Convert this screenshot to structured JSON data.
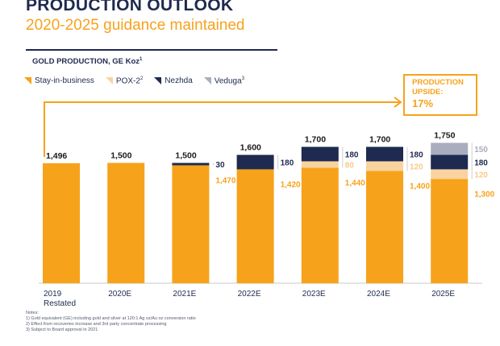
{
  "header": {
    "title": "PRODUCTION OUTLOOK",
    "subtitle": "2020-2025 guidance maintained"
  },
  "section_label": "GOLD PRODUCTION, GE Koz",
  "section_label_sup": "1",
  "legend": [
    {
      "label": "Stay-in-business",
      "sup": "",
      "color": "#f7a21b"
    },
    {
      "label": "POX-2",
      "sup": "2",
      "color": "#f9d3a0"
    },
    {
      "label": "Nezhda",
      "sup": "",
      "color": "#1e2a4f"
    },
    {
      "label": "Veduga",
      "sup": "3",
      "color": "#a9adbf"
    }
  ],
  "upside": {
    "line1": "PRODUCTION",
    "line2": "UPSIDE:",
    "value": "17%"
  },
  "chart_data": {
    "type": "bar",
    "stacked": true,
    "categories": [
      "2019 Restated",
      "2020E",
      "2021E",
      "2022E",
      "2023E",
      "2024E",
      "2025E"
    ],
    "category_lines": [
      [
        "2019",
        "Restated"
      ],
      [
        "2020E"
      ],
      [
        "2021E"
      ],
      [
        "2022E"
      ],
      [
        "2023E"
      ],
      [
        "2024E"
      ],
      [
        "2025E"
      ]
    ],
    "series": [
      {
        "name": "Stay-in-business",
        "color": "#f7a21b",
        "values": [
          1496,
          1500,
          1470,
          1420,
          1440,
          1400,
          1300
        ]
      },
      {
        "name": "POX-2",
        "color": "#f9d3a0",
        "values": [
          0,
          0,
          0,
          0,
          80,
          120,
          120
        ]
      },
      {
        "name": "Nezhda",
        "color": "#1e2a4f",
        "values": [
          0,
          0,
          30,
          180,
          180,
          180,
          180
        ]
      },
      {
        "name": "Veduga",
        "color": "#a9adbf",
        "values": [
          0,
          0,
          0,
          0,
          0,
          0,
          150
        ]
      }
    ],
    "totals": [
      "1,496",
      "1,500",
      "1,500",
      "1,600",
      "1,700",
      "1,700",
      "1,750"
    ],
    "segment_labels": [
      [],
      [],
      [
        {
          "series": 2,
          "text": "30"
        },
        {
          "series": 0,
          "text": "1,470"
        }
      ],
      [
        {
          "series": 2,
          "text": "180"
        },
        {
          "series": 0,
          "text": "1,420"
        }
      ],
      [
        {
          "series": 1,
          "text": "80"
        },
        {
          "series": 2,
          "text": "180"
        },
        {
          "series": 0,
          "text": "1,440"
        }
      ],
      [
        {
          "series": 1,
          "text": "120"
        },
        {
          "series": 2,
          "text": "180"
        },
        {
          "series": 0,
          "text": "1,400"
        }
      ],
      [
        {
          "series": 3,
          "text": "150"
        },
        {
          "series": 1,
          "text": "120"
        },
        {
          "series": 2,
          "text": "180"
        },
        {
          "series": 0,
          "text": "1,300"
        }
      ]
    ],
    "ylim": [
      0,
      1800
    ],
    "grid": false,
    "legend_position": "top-left"
  },
  "notes": [
    "Notes:",
    "1) Gold equivalent (GE) including gold and silver at 120:1 Ag oz/Au oz conversion ratio",
    "2) Effect from recoveries increase and 3rd party concentrate processing",
    "3) Subject to Board approval in 2021"
  ]
}
